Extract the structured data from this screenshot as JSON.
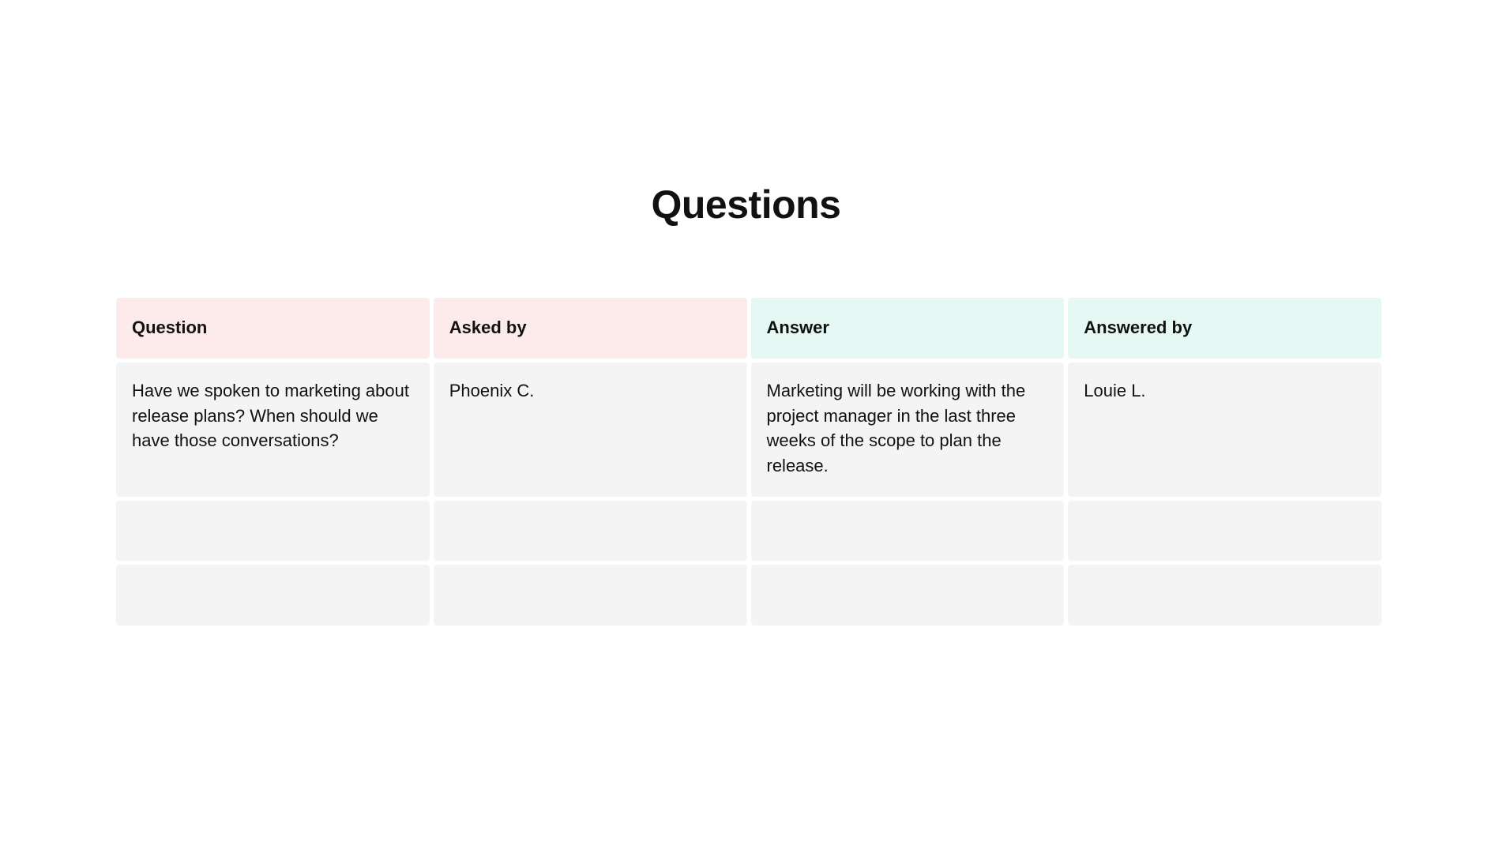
{
  "title": "Questions",
  "table": {
    "headers": [
      {
        "label": "Question",
        "color": "#fdeaea"
      },
      {
        "label": "Asked by",
        "color": "#fdeaea"
      },
      {
        "label": "Answer",
        "color": "#e6f8f3"
      },
      {
        "label": "Answered by",
        "color": "#e6f8f3"
      }
    ],
    "rows": [
      [
        "Have we spoken to marketing about release plans? When should we have those conversations?",
        "Phoenix C.",
        "Marketing will be working with the project manager in the last three weeks of the scope to plan the release.",
        "Louie L."
      ],
      [
        "",
        "",
        "",
        ""
      ],
      [
        "",
        "",
        "",
        ""
      ]
    ]
  }
}
